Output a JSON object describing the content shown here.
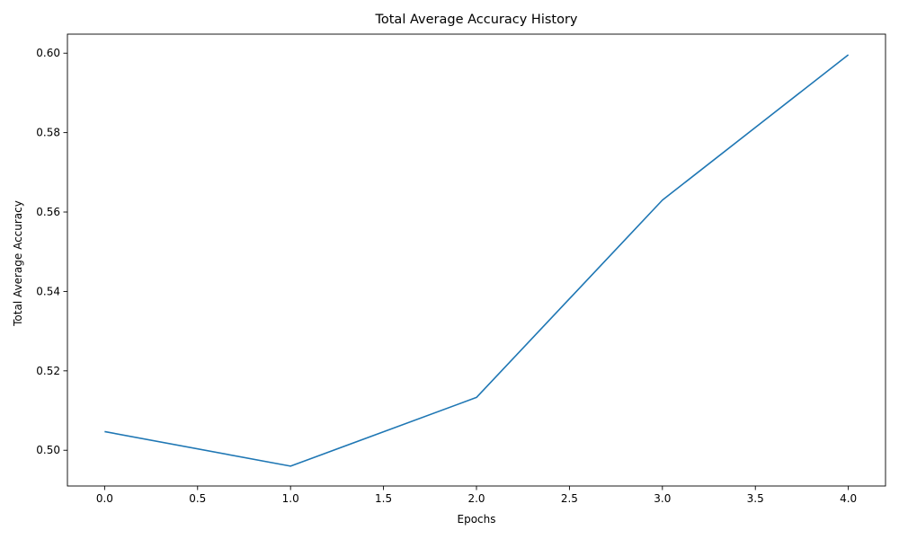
{
  "chart_data": {
    "type": "line",
    "title": "Total Average Accuracy History",
    "xlabel": "Epochs",
    "ylabel": "Total Average Accuracy",
    "xlim": [
      -0.2,
      4.2
    ],
    "ylim": [
      0.491,
      0.6048
    ],
    "x_ticks": [
      "0.0",
      "0.5",
      "1.0",
      "1.5",
      "2.0",
      "2.5",
      "3.0",
      "3.5",
      "4.0"
    ],
    "y_ticks": [
      "0.50",
      "0.52",
      "0.54",
      "0.56",
      "0.58",
      "0.60"
    ],
    "grid": false,
    "legend": "none",
    "series": [
      {
        "x": [
          0,
          1,
          2,
          3,
          4
        ],
        "values": [
          0.5047,
          0.496,
          0.5133,
          0.563,
          0.5996
        ],
        "color": "#1f77b4"
      }
    ]
  }
}
